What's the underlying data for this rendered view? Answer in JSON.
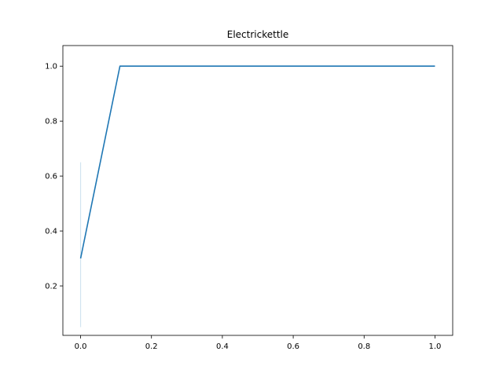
{
  "chart_data": {
    "type": "line",
    "title": "Electrickettle",
    "xlabel": "",
    "ylabel": "",
    "xlim": [
      -0.05,
      1.05
    ],
    "ylim": [
      0.02,
      1.075
    ],
    "xticks": [
      0.0,
      0.2,
      0.4,
      0.6,
      0.8,
      1.0
    ],
    "xtick_labels": [
      "0.0",
      "0.2",
      "0.4",
      "0.6",
      "0.8",
      "1.0"
    ],
    "yticks": [
      0.2,
      0.4,
      0.6,
      0.8,
      1.0
    ],
    "ytick_labels": [
      "0.2",
      "0.4",
      "0.6",
      "0.8",
      "1.0"
    ],
    "grid": false,
    "series": [
      {
        "color": "#1f77b4",
        "x": [
          0.0,
          0.111,
          0.222,
          0.333,
          0.444,
          0.556,
          0.667,
          0.778,
          0.889,
          1.0
        ],
        "y": [
          0.3,
          1.0,
          1.0,
          1.0,
          1.0,
          1.0,
          1.0,
          1.0,
          1.0,
          1.0
        ],
        "band": {
          "x": 0.0,
          "low": 0.05,
          "high": 0.65,
          "color": "#1f77b4",
          "opacity": 0.2
        }
      }
    ]
  }
}
